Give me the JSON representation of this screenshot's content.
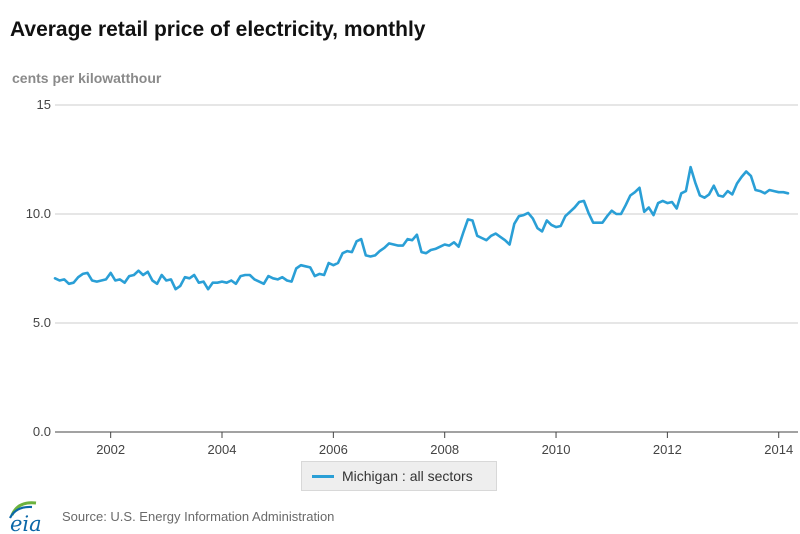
{
  "title": "Average retail price of electricity, monthly",
  "unit_label": "cents per kilowatthour",
  "source": "Source: U.S. Energy Information Administration",
  "logo_text": "eia",
  "colors": {
    "series": "#2a9fd6",
    "grid": "#cccccc",
    "axis": "#444444",
    "logo_blue": "#0b67a8",
    "logo_green": "#6cb23e"
  },
  "chart_data": {
    "type": "line",
    "title": "Average retail price of electricity, monthly",
    "ylabel": "cents per kilowatthour",
    "xlabel": "",
    "ylim": [
      0,
      15
    ],
    "yticks": [
      {
        "value": 0,
        "label": "0.0"
      },
      {
        "value": 5,
        "label": "5.0"
      },
      {
        "value": 10,
        "label": "10.0"
      },
      {
        "value": 15,
        "label": "15"
      }
    ],
    "xlim": [
      "2001-01",
      "2014-03"
    ],
    "xticks": [
      "2002",
      "2004",
      "2006",
      "2008",
      "2010",
      "2012",
      "2014"
    ],
    "grid": true,
    "legend_position": "bottom",
    "series": [
      {
        "name": "Michigan : all sectors",
        "start": "2001-01",
        "frequency": "monthly",
        "values": [
          7.05,
          6.95,
          7.0,
          6.8,
          6.85,
          7.1,
          7.25,
          7.3,
          6.95,
          6.9,
          6.95,
          7.0,
          7.3,
          6.95,
          7.0,
          6.85,
          7.15,
          7.2,
          7.4,
          7.2,
          7.35,
          6.95,
          6.8,
          7.2,
          6.95,
          7.0,
          6.55,
          6.7,
          7.1,
          7.05,
          7.2,
          6.85,
          6.9,
          6.55,
          6.85,
          6.85,
          6.9,
          6.85,
          6.95,
          6.8,
          7.15,
          7.2,
          7.2,
          7.0,
          6.9,
          6.8,
          7.15,
          7.05,
          7.0,
          7.1,
          6.95,
          6.9,
          7.5,
          7.65,
          7.6,
          7.55,
          7.15,
          7.25,
          7.2,
          7.75,
          7.65,
          7.75,
          8.2,
          8.3,
          8.25,
          8.75,
          8.85,
          8.1,
          8.05,
          8.1,
          8.3,
          8.45,
          8.65,
          8.6,
          8.55,
          8.55,
          8.85,
          8.8,
          9.05,
          8.25,
          8.2,
          8.35,
          8.4,
          8.5,
          8.6,
          8.55,
          8.7,
          8.5,
          9.15,
          9.75,
          9.7,
          9.0,
          8.9,
          8.8,
          9.0,
          9.1,
          8.95,
          8.8,
          8.6,
          9.55,
          9.9,
          9.95,
          10.05,
          9.8,
          9.35,
          9.2,
          9.7,
          9.5,
          9.4,
          9.45,
          9.9,
          10.1,
          10.3,
          10.55,
          10.6,
          10.05,
          9.6,
          9.6,
          9.6,
          9.9,
          10.15,
          10.0,
          10.0,
          10.4,
          10.85,
          11.0,
          11.2,
          10.1,
          10.3,
          9.95,
          10.5,
          10.6,
          10.5,
          10.55,
          10.25,
          10.95,
          11.05,
          12.15,
          11.45,
          10.85,
          10.75,
          10.9,
          11.3,
          10.85,
          10.8,
          11.05,
          10.9,
          11.4,
          11.7,
          11.95,
          11.75,
          11.1,
          11.05,
          10.95,
          11.1,
          11.05,
          11.0,
          11.0,
          10.95
        ]
      }
    ]
  }
}
